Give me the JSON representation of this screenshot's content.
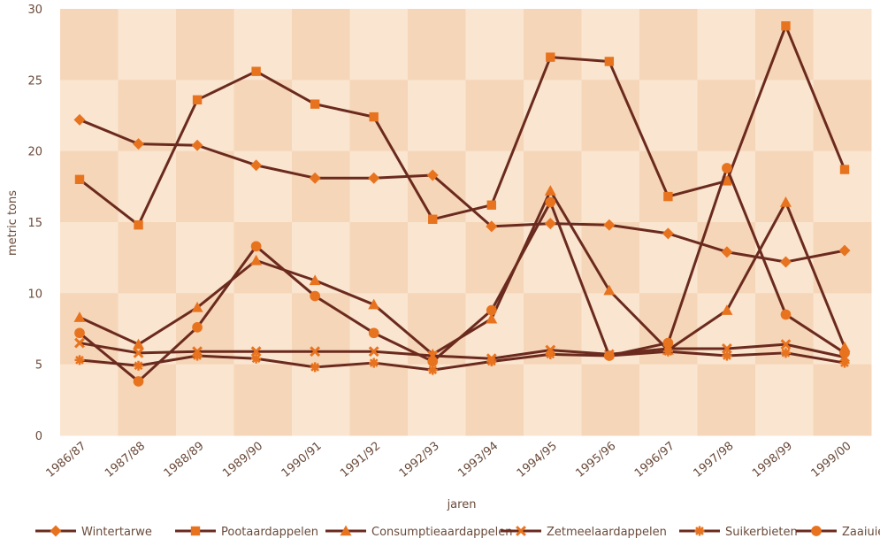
{
  "chart_data": {
    "type": "line",
    "xlabel": "jaren",
    "ylabel": "metric tons",
    "ylim": [
      0,
      30
    ],
    "yticks": [
      0,
      5,
      10,
      15,
      20,
      25,
      30
    ],
    "categories": [
      "1986/87",
      "1987/88",
      "1988/89",
      "1989/90",
      "1990/91",
      "1991/92",
      "1992/93",
      "1993/94",
      "1994/95",
      "1995/96",
      "1996/97",
      "1997/98",
      "1998/99",
      "1999/00"
    ],
    "legend_position": "bottom",
    "line_color": "#6b2a1e",
    "marker_color": "#e8731f",
    "background_colors": [
      "#f6d6b8",
      "#f9e5d0"
    ],
    "series": [
      {
        "name": "Wintertarwe",
        "marker": "diamond",
        "values": [
          22.2,
          20.5,
          20.4,
          19.0,
          18.1,
          18.1,
          18.3,
          14.7,
          14.9,
          14.8,
          14.2,
          12.9,
          12.2,
          13.0
        ]
      },
      {
        "name": "Pootaardappelen",
        "marker": "square",
        "values": [
          18.0,
          14.8,
          23.6,
          25.6,
          23.3,
          22.4,
          15.2,
          16.2,
          26.6,
          26.3,
          16.8,
          17.9,
          28.8,
          18.7
        ]
      },
      {
        "name": "Consumptieaardappelen",
        "marker": "triangle",
        "values": [
          8.3,
          6.4,
          9.0,
          12.3,
          10.9,
          9.2,
          5.7,
          8.2,
          17.2,
          10.2,
          6.0,
          8.8,
          16.4,
          6.2
        ]
      },
      {
        "name": "Zetmeelaardappelen",
        "marker": "x",
        "values": [
          6.5,
          5.8,
          5.9,
          5.9,
          5.9,
          5.9,
          5.6,
          5.4,
          6.0,
          5.7,
          6.1,
          6.1,
          6.4,
          5.5
        ]
      },
      {
        "name": "Suikerbieten",
        "marker": "asterisk",
        "values": [
          5.3,
          4.9,
          5.6,
          5.4,
          4.8,
          5.1,
          4.6,
          5.2,
          5.7,
          5.6,
          5.9,
          5.6,
          5.8,
          5.1
        ]
      },
      {
        "name": "Zaaiuien",
        "marker": "circle",
        "values": [
          7.2,
          3.8,
          7.6,
          13.3,
          9.8,
          7.2,
          5.2,
          8.8,
          16.4,
          5.6,
          6.5,
          18.8,
          8.5,
          5.8
        ]
      }
    ]
  }
}
